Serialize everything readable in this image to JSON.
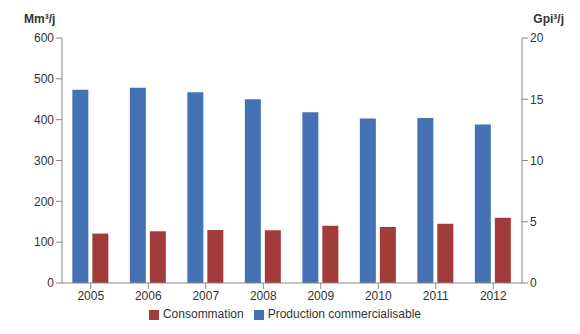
{
  "chart_data": {
    "type": "bar",
    "y_label": "Mm³/j",
    "y2_label": "Gpi³/j",
    "categories": [
      "2005",
      "2006",
      "2007",
      "2008",
      "2009",
      "2010",
      "2011",
      "2012"
    ],
    "series": [
      {
        "name": "Production commercialisable",
        "color": "#4472b4",
        "values": [
          473,
          478,
          467,
          450,
          418,
          403,
          404,
          388
        ]
      },
      {
        "name": "Consommation",
        "color": "#a23c3a",
        "values": [
          121,
          127,
          130,
          129,
          140,
          137,
          145,
          160
        ]
      }
    ],
    "ylim": [
      0,
      600
    ],
    "yticks": [
      0,
      100,
      200,
      300,
      400,
      500,
      600
    ],
    "y2lim": [
      0,
      20
    ],
    "y2ticks": [
      0,
      5,
      10,
      15,
      20
    ],
    "grid": false,
    "legend": "bottom"
  }
}
